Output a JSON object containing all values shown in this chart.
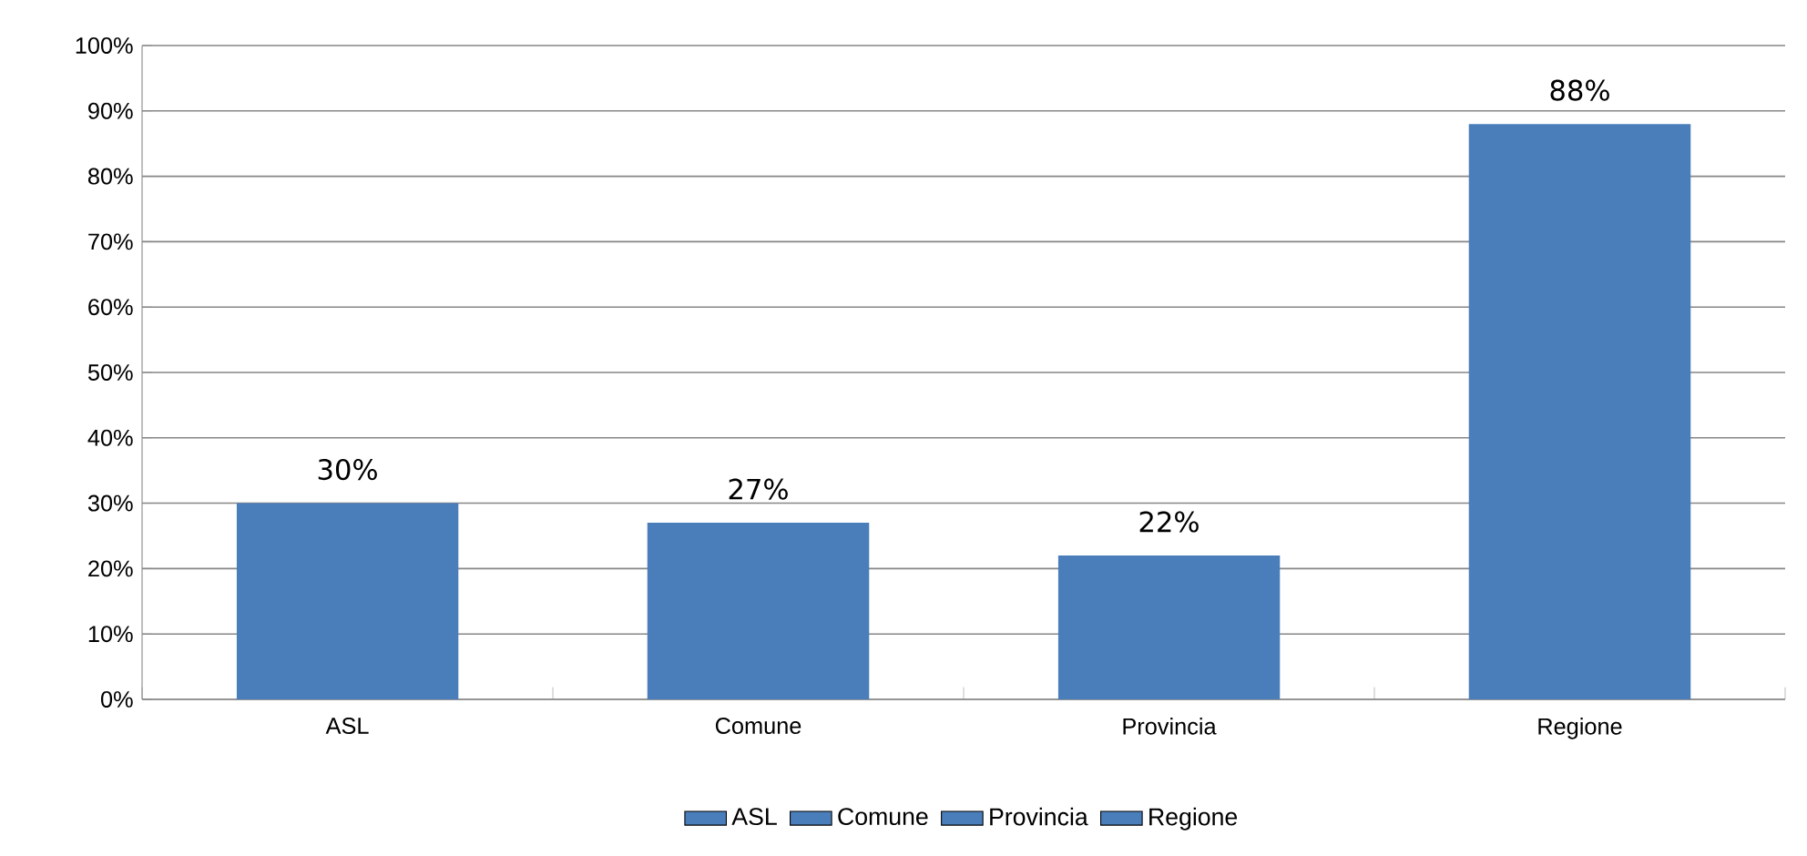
{
  "chart_data": {
    "type": "bar",
    "categories": [
      "ASL",
      "Comune",
      "Provincia",
      "Regione"
    ],
    "series": [
      {
        "name": "ASL",
        "color": "#4a7ebb",
        "values": [
          30,
          null,
          null,
          null
        ],
        "value_labels": [
          "30%",
          null,
          null,
          null
        ]
      },
      {
        "name": "Comune",
        "color": "#4a7ebb",
        "values": [
          null,
          27,
          null,
          null
        ],
        "value_labels": [
          null,
          "27%",
          null,
          null
        ]
      },
      {
        "name": "Provincia",
        "color": "#4a7ebb",
        "values": [
          null,
          null,
          22,
          null
        ],
        "value_labels": [
          null,
          null,
          "22%",
          null
        ]
      },
      {
        "name": "Regione",
        "color": "#4a7ebb",
        "values": [
          null,
          null,
          null,
          88
        ],
        "value_labels": [
          null,
          null,
          null,
          "88%"
        ]
      }
    ],
    "ylim": [
      0,
      100
    ],
    "yticks": [
      {
        "value": 0,
        "label": "0%"
      },
      {
        "value": 10,
        "label": "10%"
      },
      {
        "value": 20,
        "label": "20%"
      },
      {
        "value": 30,
        "label": "30%"
      },
      {
        "value": 40,
        "label": "40%"
      },
      {
        "value": 50,
        "label": "50%"
      },
      {
        "value": 60,
        "label": "60%"
      },
      {
        "value": 70,
        "label": "70%"
      },
      {
        "value": 80,
        "label": "80%"
      },
      {
        "value": 90,
        "label": "90%"
      },
      {
        "value": 100,
        "label": "100%"
      }
    ],
    "grid": "y",
    "legend": "bottom"
  }
}
